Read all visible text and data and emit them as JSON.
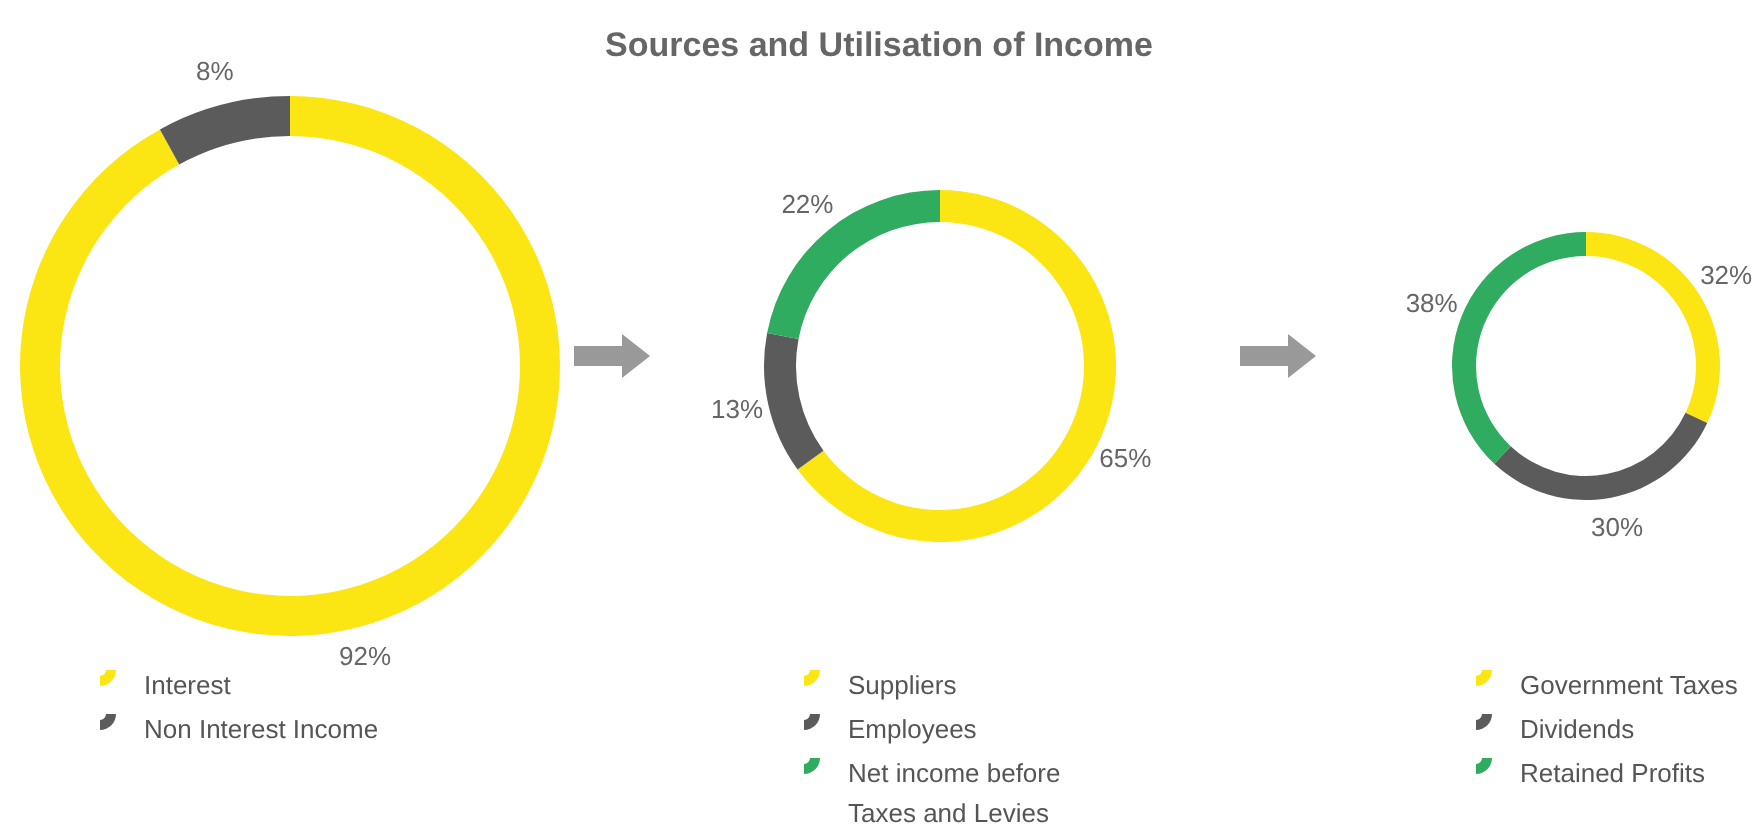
{
  "chart_data": [
    {
      "type": "donut",
      "title": "Sources and Utilisation of Income",
      "categories": [
        "Interest",
        "Non Interest Income"
      ],
      "values": [
        92,
        8
      ],
      "value_labels": [
        "92%",
        "8%"
      ],
      "colors": [
        "#fbe614",
        "#5b5b5b"
      ],
      "legend": "bottom"
    },
    {
      "type": "donut",
      "categories": [
        "Suppliers",
        "Employees",
        "Net income before Taxes and Levies"
      ],
      "values": [
        65,
        13,
        22
      ],
      "value_labels": [
        "65%",
        "13%",
        "22%"
      ],
      "colors": [
        "#fbe614",
        "#5b5b5b",
        "#2fac5f"
      ],
      "legend": "bottom"
    },
    {
      "type": "donut",
      "categories": [
        "Government Taxes",
        "Dividends",
        "Retained Profits"
      ],
      "values": [
        32,
        30,
        38
      ],
      "value_labels": [
        "32%",
        "30%",
        "38%"
      ],
      "colors": [
        "#fbe614",
        "#5b5b5b",
        "#2fac5f"
      ],
      "legend": "bottom"
    }
  ]
}
